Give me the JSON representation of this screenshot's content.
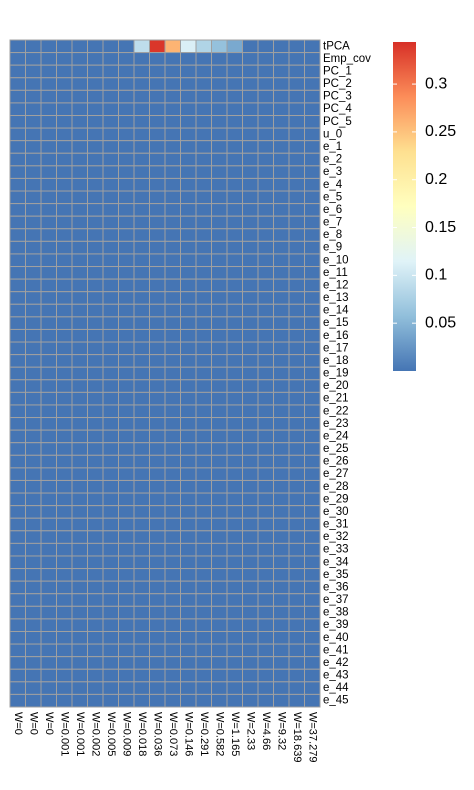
{
  "chart_data": {
    "type": "heatmap",
    "rows": [
      "tPCA",
      "Emp_cov",
      "PC_1",
      "PC_2",
      "PC_3",
      "PC_4",
      "PC_5",
      "u_0",
      "e_1",
      "e_2",
      "e_3",
      "e_4",
      "e_5",
      "e_6",
      "e_7",
      "e_8",
      "e_9",
      "e_10",
      "e_11",
      "e_12",
      "e_13",
      "e_14",
      "e_15",
      "e_16",
      "e_17",
      "e_18",
      "e_19",
      "e_20",
      "e_21",
      "e_22",
      "e_23",
      "e_24",
      "e_25",
      "e_26",
      "e_27",
      "e_28",
      "e_29",
      "e_30",
      "e_31",
      "e_32",
      "e_33",
      "e_34",
      "e_35",
      "e_36",
      "e_37",
      "e_38",
      "e_39",
      "e_40",
      "e_41",
      "e_42",
      "e_43",
      "e_44",
      "e_45"
    ],
    "columns": [
      "W=0",
      "W=0",
      "W=0",
      "W=0.001",
      "W=0.001",
      "W=0.002",
      "W=0.005",
      "W=0.009",
      "W=0.018",
      "W=0.036",
      "W=0.073",
      "W=0.146",
      "W=0.291",
      "W=0.582",
      "W=1.165",
      "W=2.33",
      "W=4.66",
      "W=9.32",
      "W=18.639",
      "W=37.279"
    ],
    "values": [
      [
        0,
        0,
        0,
        0,
        0,
        0,
        0,
        0,
        0.09,
        0.34,
        0.26,
        0.11,
        0.08,
        0.06,
        0.04,
        0,
        0,
        0,
        0,
        0
      ],
      [
        0,
        0,
        0,
        0,
        0,
        0,
        0,
        0,
        0,
        0,
        0,
        0,
        0,
        0,
        0,
        0,
        0,
        0,
        0,
        0
      ],
      [
        0,
        0,
        0,
        0,
        0,
        0,
        0,
        0,
        0,
        0,
        0,
        0,
        0,
        0,
        0,
        0,
        0,
        0,
        0,
        0
      ],
      [
        0,
        0,
        0,
        0,
        0,
        0,
        0,
        0,
        0,
        0,
        0,
        0,
        0,
        0,
        0,
        0,
        0,
        0,
        0,
        0
      ],
      [
        0,
        0,
        0,
        0,
        0,
        0,
        0,
        0,
        0,
        0,
        0,
        0,
        0,
        0,
        0,
        0,
        0,
        0,
        0,
        0
      ],
      [
        0,
        0,
        0,
        0,
        0,
        0,
        0,
        0,
        0,
        0,
        0,
        0,
        0,
        0,
        0,
        0,
        0,
        0,
        0,
        0
      ],
      [
        0,
        0,
        0,
        0,
        0,
        0,
        0,
        0,
        0,
        0,
        0,
        0,
        0,
        0,
        0,
        0,
        0,
        0,
        0,
        0
      ],
      [
        0,
        0,
        0,
        0,
        0,
        0,
        0,
        0,
        0,
        0,
        0,
        0,
        0,
        0,
        0,
        0,
        0,
        0,
        0,
        0
      ],
      [
        0,
        0,
        0,
        0,
        0,
        0,
        0,
        0,
        0,
        0,
        0,
        0,
        0,
        0,
        0,
        0,
        0,
        0,
        0,
        0
      ],
      [
        0,
        0,
        0,
        0,
        0,
        0,
        0,
        0,
        0,
        0,
        0,
        0,
        0,
        0,
        0,
        0,
        0,
        0,
        0,
        0
      ],
      [
        0,
        0,
        0,
        0,
        0,
        0,
        0,
        0,
        0,
        0,
        0,
        0,
        0,
        0,
        0,
        0,
        0,
        0,
        0,
        0
      ],
      [
        0,
        0,
        0,
        0,
        0,
        0,
        0,
        0,
        0,
        0,
        0,
        0,
        0,
        0,
        0,
        0,
        0,
        0,
        0,
        0
      ],
      [
        0,
        0,
        0,
        0,
        0,
        0,
        0,
        0,
        0,
        0,
        0,
        0,
        0,
        0,
        0,
        0,
        0,
        0,
        0,
        0
      ],
      [
        0,
        0,
        0,
        0,
        0,
        0,
        0,
        0,
        0,
        0,
        0,
        0,
        0,
        0,
        0,
        0,
        0,
        0,
        0,
        0
      ],
      [
        0,
        0,
        0,
        0,
        0,
        0,
        0,
        0,
        0,
        0,
        0,
        0,
        0,
        0,
        0,
        0,
        0,
        0,
        0,
        0
      ],
      [
        0,
        0,
        0,
        0,
        0,
        0,
        0,
        0,
        0,
        0,
        0,
        0,
        0,
        0,
        0,
        0,
        0,
        0,
        0,
        0
      ],
      [
        0,
        0,
        0,
        0,
        0,
        0,
        0,
        0,
        0,
        0,
        0,
        0,
        0,
        0,
        0,
        0,
        0,
        0,
        0,
        0
      ],
      [
        0,
        0,
        0,
        0,
        0,
        0,
        0,
        0,
        0,
        0,
        0,
        0,
        0,
        0,
        0,
        0,
        0,
        0,
        0,
        0
      ],
      [
        0,
        0,
        0,
        0,
        0,
        0,
        0,
        0,
        0,
        0,
        0,
        0,
        0,
        0,
        0,
        0,
        0,
        0,
        0,
        0
      ],
      [
        0,
        0,
        0,
        0,
        0,
        0,
        0,
        0,
        0,
        0,
        0,
        0,
        0,
        0,
        0,
        0,
        0,
        0,
        0,
        0
      ],
      [
        0,
        0,
        0,
        0,
        0,
        0,
        0,
        0,
        0,
        0,
        0,
        0,
        0,
        0,
        0,
        0,
        0,
        0,
        0,
        0
      ],
      [
        0,
        0,
        0,
        0,
        0,
        0,
        0,
        0,
        0,
        0,
        0,
        0,
        0,
        0,
        0,
        0,
        0,
        0,
        0,
        0
      ],
      [
        0,
        0,
        0,
        0,
        0,
        0,
        0,
        0,
        0,
        0,
        0,
        0,
        0,
        0,
        0,
        0,
        0,
        0,
        0,
        0
      ],
      [
        0,
        0,
        0,
        0,
        0,
        0,
        0,
        0,
        0,
        0,
        0,
        0,
        0,
        0,
        0,
        0,
        0,
        0,
        0,
        0
      ],
      [
        0,
        0,
        0,
        0,
        0,
        0,
        0,
        0,
        0,
        0,
        0,
        0,
        0,
        0,
        0,
        0,
        0,
        0,
        0,
        0
      ],
      [
        0,
        0,
        0,
        0,
        0,
        0,
        0,
        0,
        0,
        0,
        0,
        0,
        0,
        0,
        0,
        0,
        0,
        0,
        0,
        0
      ],
      [
        0,
        0,
        0,
        0,
        0,
        0,
        0,
        0,
        0,
        0,
        0,
        0,
        0,
        0,
        0,
        0,
        0,
        0,
        0,
        0
      ],
      [
        0,
        0,
        0,
        0,
        0,
        0,
        0,
        0,
        0,
        0,
        0,
        0,
        0,
        0,
        0,
        0,
        0,
        0,
        0,
        0
      ],
      [
        0,
        0,
        0,
        0,
        0,
        0,
        0,
        0,
        0,
        0,
        0,
        0,
        0,
        0,
        0,
        0,
        0,
        0,
        0,
        0
      ],
      [
        0,
        0,
        0,
        0,
        0,
        0,
        0,
        0,
        0,
        0,
        0,
        0,
        0,
        0,
        0,
        0,
        0,
        0,
        0,
        0
      ],
      [
        0,
        0,
        0,
        0,
        0,
        0,
        0,
        0,
        0,
        0,
        0,
        0,
        0,
        0,
        0,
        0,
        0,
        0,
        0,
        0
      ],
      [
        0,
        0,
        0,
        0,
        0,
        0,
        0,
        0,
        0,
        0,
        0,
        0,
        0,
        0,
        0,
        0,
        0,
        0,
        0,
        0
      ],
      [
        0,
        0,
        0,
        0,
        0,
        0,
        0,
        0,
        0,
        0,
        0,
        0,
        0,
        0,
        0,
        0,
        0,
        0,
        0,
        0
      ],
      [
        0,
        0,
        0,
        0,
        0,
        0,
        0,
        0,
        0,
        0,
        0,
        0,
        0,
        0,
        0,
        0,
        0,
        0,
        0,
        0
      ],
      [
        0,
        0,
        0,
        0,
        0,
        0,
        0,
        0,
        0,
        0,
        0,
        0,
        0,
        0,
        0,
        0,
        0,
        0,
        0,
        0
      ],
      [
        0,
        0,
        0,
        0,
        0,
        0,
        0,
        0,
        0,
        0,
        0,
        0,
        0,
        0,
        0,
        0,
        0,
        0,
        0,
        0
      ],
      [
        0,
        0,
        0,
        0,
        0,
        0,
        0,
        0,
        0,
        0,
        0,
        0,
        0,
        0,
        0,
        0,
        0,
        0,
        0,
        0
      ],
      [
        0,
        0,
        0,
        0,
        0,
        0,
        0,
        0,
        0,
        0,
        0,
        0,
        0,
        0,
        0,
        0,
        0,
        0,
        0,
        0
      ],
      [
        0,
        0,
        0,
        0,
        0,
        0,
        0,
        0,
        0,
        0,
        0,
        0,
        0,
        0,
        0,
        0,
        0,
        0,
        0,
        0
      ],
      [
        0,
        0,
        0,
        0,
        0,
        0,
        0,
        0,
        0,
        0,
        0,
        0,
        0,
        0,
        0,
        0,
        0,
        0,
        0,
        0
      ],
      [
        0,
        0,
        0,
        0,
        0,
        0,
        0,
        0,
        0,
        0,
        0,
        0,
        0,
        0,
        0,
        0,
        0,
        0,
        0,
        0
      ],
      [
        0,
        0,
        0,
        0,
        0,
        0,
        0,
        0,
        0,
        0,
        0,
        0,
        0,
        0,
        0,
        0,
        0,
        0,
        0,
        0
      ],
      [
        0,
        0,
        0,
        0,
        0,
        0,
        0,
        0,
        0,
        0,
        0,
        0,
        0,
        0,
        0,
        0,
        0,
        0,
        0,
        0
      ],
      [
        0,
        0,
        0,
        0,
        0,
        0,
        0,
        0,
        0,
        0,
        0,
        0,
        0,
        0,
        0,
        0,
        0,
        0,
        0,
        0
      ],
      [
        0,
        0,
        0,
        0,
        0,
        0,
        0,
        0,
        0,
        0,
        0,
        0,
        0,
        0,
        0,
        0,
        0,
        0,
        0,
        0
      ],
      [
        0,
        0,
        0,
        0,
        0,
        0,
        0,
        0,
        0,
        0,
        0,
        0,
        0,
        0,
        0,
        0,
        0,
        0,
        0,
        0
      ],
      [
        0,
        0,
        0,
        0,
        0,
        0,
        0,
        0,
        0,
        0,
        0,
        0,
        0,
        0,
        0,
        0,
        0,
        0,
        0,
        0
      ],
      [
        0,
        0,
        0,
        0,
        0,
        0,
        0,
        0,
        0,
        0,
        0,
        0,
        0,
        0,
        0,
        0,
        0,
        0,
        0,
        0
      ],
      [
        0,
        0,
        0,
        0,
        0,
        0,
        0,
        0,
        0,
        0,
        0,
        0,
        0,
        0,
        0,
        0,
        0,
        0,
        0,
        0
      ],
      [
        0,
        0,
        0,
        0,
        0,
        0,
        0,
        0,
        0,
        0,
        0,
        0,
        0,
        0,
        0,
        0,
        0,
        0,
        0,
        0
      ],
      [
        0,
        0,
        0,
        0,
        0,
        0,
        0,
        0,
        0,
        0,
        0,
        0,
        0,
        0,
        0,
        0,
        0,
        0,
        0,
        0
      ],
      [
        0,
        0,
        0,
        0,
        0,
        0,
        0,
        0,
        0,
        0,
        0,
        0,
        0,
        0,
        0,
        0,
        0,
        0,
        0,
        0
      ],
      [
        0,
        0,
        0,
        0,
        0,
        0,
        0,
        0,
        0,
        0,
        0,
        0,
        0,
        0,
        0,
        0,
        0,
        0,
        0,
        0
      ]
    ],
    "colorlim": [
      0,
      0.344
    ],
    "colorticks": [
      0.05,
      0.1,
      0.15,
      0.2,
      0.25,
      0.3
    ],
    "colors": [
      "#4575b4",
      "#91bfdb",
      "#e0f3f8",
      "#ffffbf",
      "#fee090",
      "#fc8d59",
      "#d73027"
    ],
    "border_color": "#a0a0a0"
  }
}
